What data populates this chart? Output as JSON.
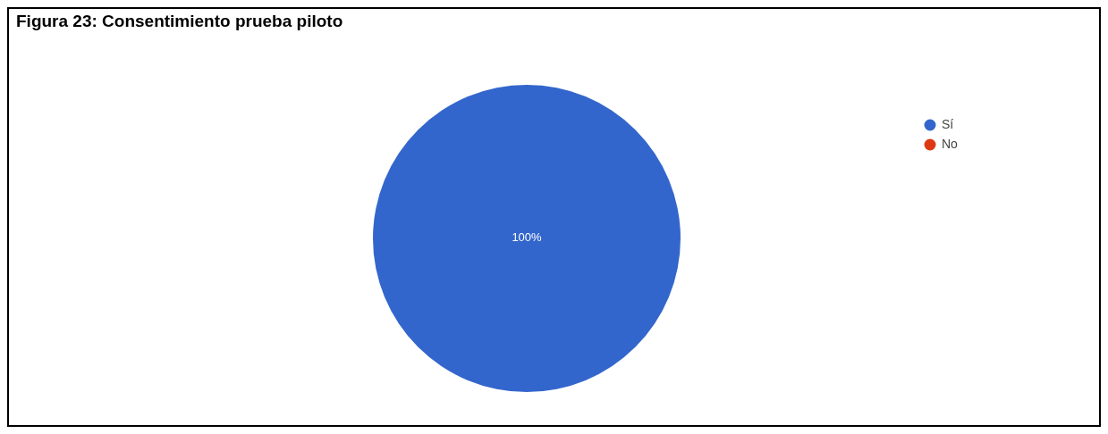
{
  "chart_data": {
    "type": "pie",
    "title": "Figura 23: Consentimiento prueba piloto",
    "categories": [
      "Sí",
      "No"
    ],
    "values": [
      100,
      0
    ],
    "colors": [
      "#3366cc",
      "#dc3912"
    ],
    "value_labels": [
      "100%",
      null
    ],
    "legend": "top right"
  }
}
